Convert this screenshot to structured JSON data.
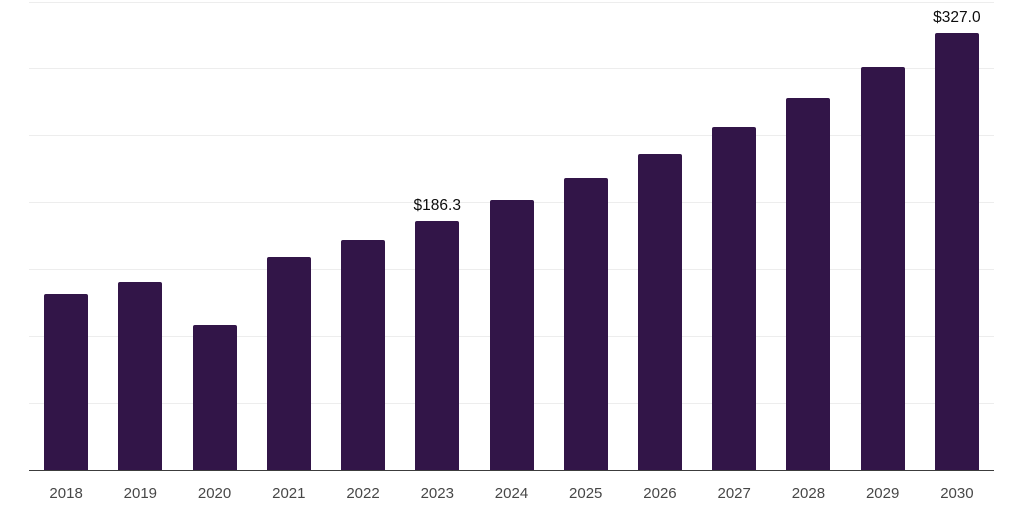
{
  "chart_data": {
    "type": "bar",
    "categories": [
      "2018",
      "2019",
      "2020",
      "2021",
      "2022",
      "2023",
      "2024",
      "2025",
      "2026",
      "2027",
      "2028",
      "2029",
      "2030"
    ],
    "values": [
      131.4,
      140.7,
      108.8,
      159.4,
      171.9,
      186.3,
      201.9,
      218.4,
      236.0,
      256.2,
      277.9,
      301.6,
      327.0
    ],
    "annotations": [
      {
        "index": 5,
        "text": "$186.3"
      },
      {
        "index": 12,
        "text": "$327.0"
      }
    ],
    "title": "",
    "xlabel": "",
    "ylabel": "",
    "ylim": [
      0,
      350
    ],
    "grid_step": 50,
    "grid": true,
    "legend": false,
    "colors": {
      "bar": "#321548",
      "gridline": "#ededed",
      "axis_line": "#3c3c3c",
      "tick_label": "#474747",
      "value_label": "#0d0d0d",
      "background": "#ffffff"
    }
  }
}
